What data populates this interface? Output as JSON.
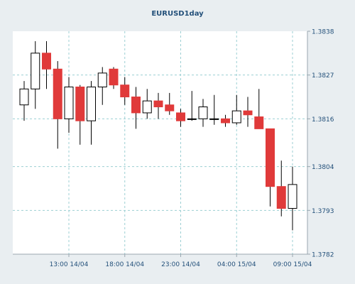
{
  "chart_data": {
    "type": "candlestick",
    "title": "EURUSD1day",
    "x_tick_labels": [
      "13:00 14/04",
      "18:00 14/04",
      "23:00 14/04",
      "04:00 15/04",
      "09:00 15/04"
    ],
    "y_tick_labels": [
      "1.3838",
      "1.3827",
      "1.3816",
      "1.3804",
      "1.3793",
      "1.3782"
    ],
    "ylim": [
      1.3782,
      1.3838
    ],
    "grid": true,
    "colors": {
      "bullish_fill": "#ffffff",
      "bearish_fill": "#e03a3a",
      "candle_outline": "#000000",
      "grid": "#9ccfd3",
      "axis_text": "#23507a",
      "title": "#23507a",
      "panel_background": "#ffffff",
      "page_background": "#e9eef1"
    },
    "candles": [
      {
        "open": 1.38195,
        "high": 1.38255,
        "low": 1.38155,
        "close": 1.38235
      },
      {
        "open": 1.38235,
        "high": 1.38355,
        "low": 1.38185,
        "close": 1.38325
      },
      {
        "open": 1.38325,
        "high": 1.38355,
        "low": 1.38235,
        "close": 1.38285
      },
      {
        "open": 1.38285,
        "high": 1.38305,
        "low": 1.38085,
        "close": 1.3816
      },
      {
        "open": 1.3816,
        "high": 1.38265,
        "low": 1.38125,
        "close": 1.3824
      },
      {
        "open": 1.3824,
        "high": 1.38245,
        "low": 1.38095,
        "close": 1.38155
      },
      {
        "open": 1.38155,
        "high": 1.38255,
        "low": 1.38095,
        "close": 1.3824
      },
      {
        "open": 1.3824,
        "high": 1.3829,
        "low": 1.38195,
        "close": 1.38275
      },
      {
        "open": 1.38285,
        "high": 1.3829,
        "low": 1.38235,
        "close": 1.38245
      },
      {
        "open": 1.38245,
        "high": 1.38265,
        "low": 1.38195,
        "close": 1.38215
      },
      {
        "open": 1.38215,
        "high": 1.3824,
        "low": 1.38135,
        "close": 1.38175
      },
      {
        "open": 1.38175,
        "high": 1.38235,
        "low": 1.3816,
        "close": 1.38205
      },
      {
        "open": 1.38205,
        "high": 1.38225,
        "low": 1.3816,
        "close": 1.3819
      },
      {
        "open": 1.38195,
        "high": 1.38225,
        "low": 1.3817,
        "close": 1.3818
      },
      {
        "open": 1.38175,
        "high": 1.38185,
        "low": 1.3814,
        "close": 1.38155
      },
      {
        "open": 1.3816,
        "high": 1.3823,
        "low": 1.38155,
        "close": 1.3816
      },
      {
        "open": 1.3816,
        "high": 1.3821,
        "low": 1.3814,
        "close": 1.3819
      },
      {
        "open": 1.3816,
        "high": 1.3822,
        "low": 1.38145,
        "close": 1.3816
      },
      {
        "open": 1.3816,
        "high": 1.3817,
        "low": 1.3814,
        "close": 1.3815
      },
      {
        "open": 1.3815,
        "high": 1.3822,
        "low": 1.38145,
        "close": 1.3818
      },
      {
        "open": 1.3818,
        "high": 1.38215,
        "low": 1.3814,
        "close": 1.3817
      },
      {
        "open": 1.38165,
        "high": 1.38235,
        "low": 1.3814,
        "close": 1.38135
      },
      {
        "open": 1.38135,
        "high": 1.38135,
        "low": 1.3794,
        "close": 1.3799
      },
      {
        "open": 1.3799,
        "high": 1.38055,
        "low": 1.37915,
        "close": 1.37935
      },
      {
        "open": 1.37935,
        "high": 1.3804,
        "low": 1.3788,
        "close": 1.37995
      }
    ]
  }
}
